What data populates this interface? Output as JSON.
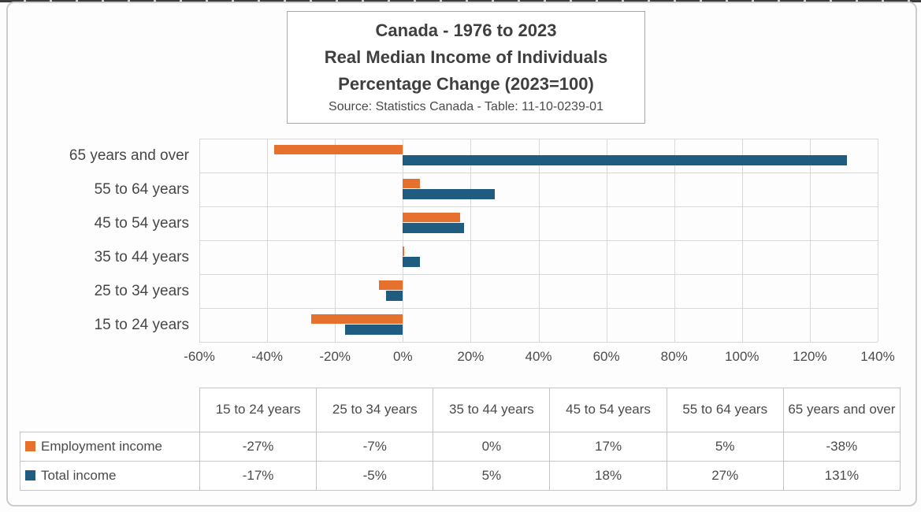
{
  "title": {
    "line1": "Canada - 1976 to 2023",
    "line2": "Real Median Income of Individuals",
    "line3": "Percentage Change (2023=100)",
    "source": "Source: Statistics Canada - Table: 11-10-0239-01"
  },
  "colors": {
    "employment_income": "#e6702e",
    "total_income": "#1f5c80",
    "gridline": "#d8d8d8",
    "table_border": "#c4c4c4",
    "text": "#474747"
  },
  "chart_data": {
    "type": "bar",
    "orientation": "horizontal",
    "title": "Canada - 1976 to 2023 Real Median Income of Individuals Percentage Change (2023=100)",
    "categories": [
      "15 to 24 years",
      "25 to 34 years",
      "35 to 44 years",
      "45 to 54 years",
      "55 to 64 years",
      "65 years and over"
    ],
    "row_order_top_to_bottom": [
      "65 years and over",
      "55 to 64 years",
      "45 to 54 years",
      "35 to 44 years",
      "25 to 34 years",
      "15 to 24 years"
    ],
    "series": [
      {
        "name": "Employment income",
        "color": "#e6702e",
        "values_pct": [
          -27,
          -7,
          0,
          17,
          5,
          -38
        ]
      },
      {
        "name": "Total income",
        "color": "#1f5c80",
        "values_pct": [
          -17,
          -5,
          5,
          18,
          27,
          131
        ]
      }
    ],
    "x_axis": {
      "min_pct": -60,
      "max_pct": 140,
      "tick_step_pct": 20,
      "tick_labels": [
        "-60%",
        "-40%",
        "-20%",
        "0%",
        "20%",
        "40%",
        "60%",
        "80%",
        "100%",
        "120%",
        "140%"
      ]
    },
    "grid": true,
    "legend_position": "table-row-headers"
  },
  "table": {
    "column_headers": [
      "15 to 24 years",
      "25 to 34 years",
      "35 to 44 years",
      "45 to 54 years",
      "55 to 64 years",
      "65 years and over"
    ],
    "rows": [
      {
        "label": "Employment income",
        "legend_color": "#e6702e",
        "values": [
          "-27%",
          "-7%",
          "0%",
          "17%",
          "5%",
          "-38%"
        ]
      },
      {
        "label": "Total income",
        "legend_color": "#1f5c80",
        "values": [
          "-17%",
          "-5%",
          "5%",
          "18%",
          "27%",
          "131%"
        ]
      }
    ]
  }
}
